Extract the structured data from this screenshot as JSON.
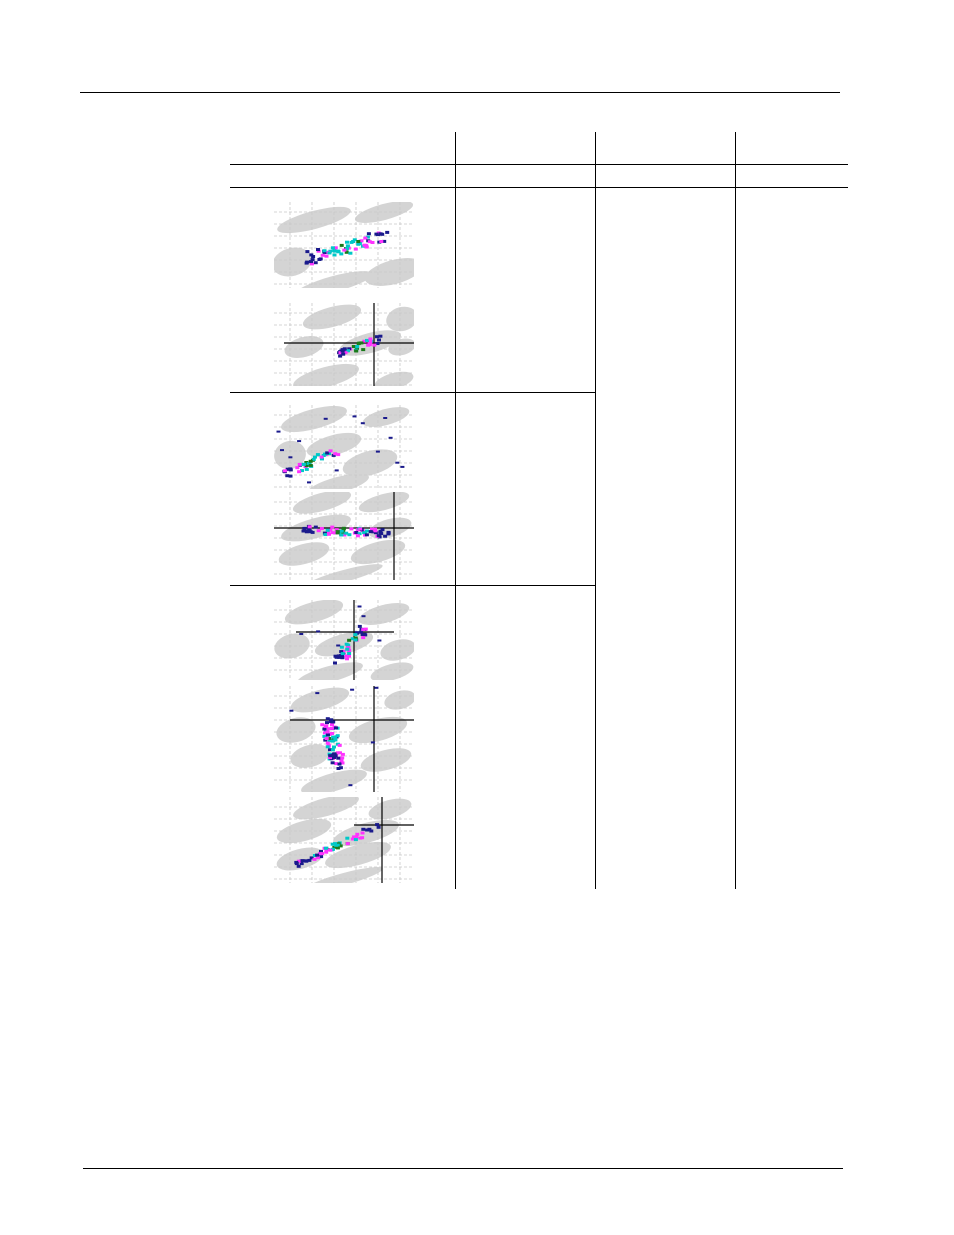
{
  "page": {
    "header_rule": true,
    "footer_rule": true
  },
  "table": {
    "columns": [
      "",
      "",
      "",
      ""
    ],
    "rows": [
      {
        "figure_group": "row-1",
        "plots": [
          {
            "name": "scatter-plot-1a",
            "cluster": "diagonal-band"
          },
          {
            "name": "scatter-plot-1b",
            "cluster": "diagonal-band-with-crosshair"
          }
        ]
      },
      {
        "figure_group": "row-2",
        "plots": [
          {
            "name": "scatter-plot-2a",
            "cluster": "diagonal-with-outliers"
          },
          {
            "name": "scatter-plot-2b",
            "cluster": "horizontal-band"
          }
        ]
      },
      {
        "figure_group": "row-3",
        "plots": [
          {
            "name": "scatter-plot-3a",
            "cluster": "compact-blob"
          },
          {
            "name": "scatter-plot-3b",
            "cluster": "vertical-blob"
          },
          {
            "name": "scatter-plot-3c",
            "cluster": "thin-diagonal"
          }
        ]
      }
    ]
  },
  "colors": {
    "ellipse_fill": "#d4d4d4",
    "grid": "#c8c8c8",
    "density_low": "#1a1a8c",
    "density_mid": "#ff33ff",
    "density_high": "#00c8c8",
    "density_peak": "#1a7a1a",
    "rule": "#000000"
  }
}
